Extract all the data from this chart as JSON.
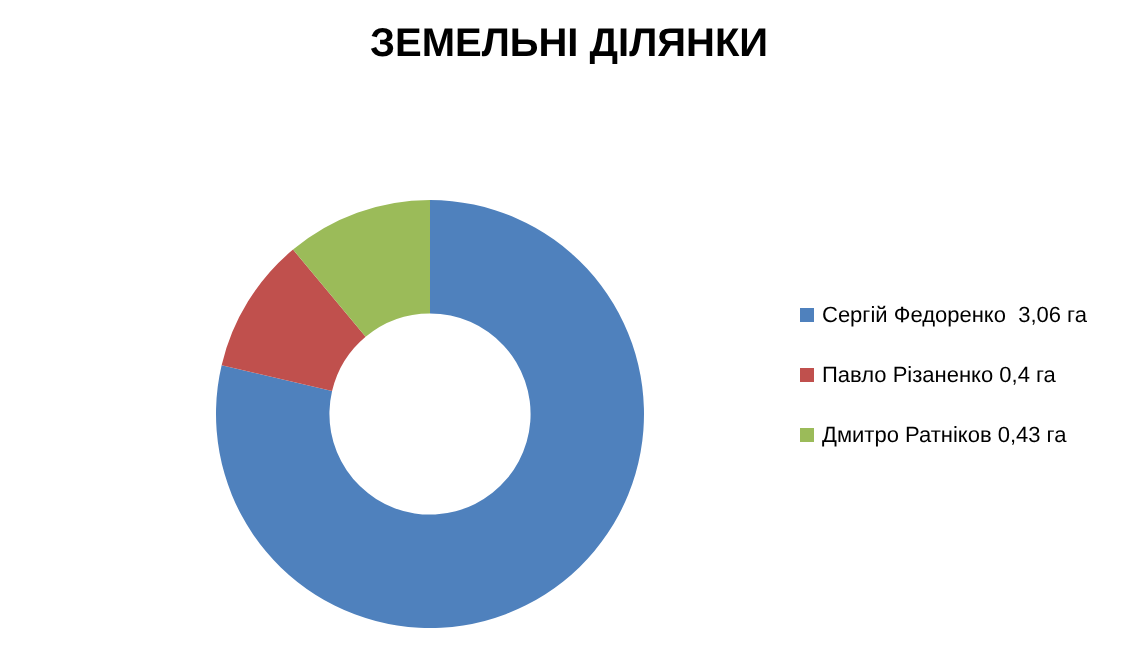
{
  "chart_data": {
    "type": "donut",
    "title": "ЗЕМЕЛЬНІ ДІЛЯНКИ",
    "categories": [
      "Сергій Федоренко  3,06 га",
      "Павло Різаненко 0,4 га",
      "Дмитро Ратніков 0,43 га"
    ],
    "values": [
      3.06,
      0.4,
      0.43
    ],
    "colors": [
      "#4f81bd",
      "#c0504d",
      "#9bbb59"
    ],
    "legend": "right"
  }
}
